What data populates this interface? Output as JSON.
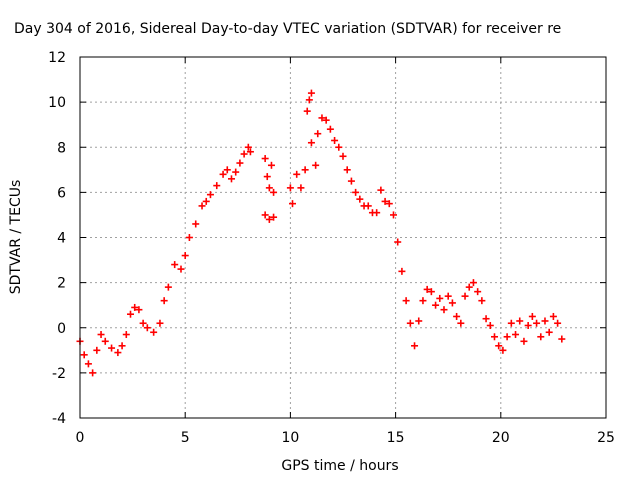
{
  "chart_data": {
    "type": "scatter",
    "title": "Day 304 of 2016, Sidereal Day-to-day VTEC variation (SDTVAR) for receiver re",
    "xlabel": "GPS time / hours",
    "ylabel": "SDTVAR / TECUs",
    "xlim": [
      0,
      25
    ],
    "ylim": [
      -4,
      12
    ],
    "xticks": [
      0,
      5,
      10,
      15,
      20,
      25
    ],
    "yticks": [
      -4,
      -2,
      0,
      2,
      4,
      6,
      8,
      10,
      12
    ],
    "grid": true,
    "marker": "+",
    "marker_color": "#ff0000",
    "series": [
      {
        "name": "SDTVAR",
        "points": [
          [
            0.0,
            -0.6
          ],
          [
            0.2,
            -1.2
          ],
          [
            0.4,
            -1.6
          ],
          [
            0.6,
            -2.0
          ],
          [
            0.8,
            -1.0
          ],
          [
            1.0,
            -0.3
          ],
          [
            1.2,
            -0.6
          ],
          [
            1.5,
            -0.9
          ],
          [
            1.8,
            -1.1
          ],
          [
            2.0,
            -0.8
          ],
          [
            2.2,
            -0.3
          ],
          [
            2.4,
            0.6
          ],
          [
            2.6,
            0.9
          ],
          [
            2.8,
            0.8
          ],
          [
            3.0,
            0.2
          ],
          [
            3.2,
            0.0
          ],
          [
            3.5,
            -0.2
          ],
          [
            3.8,
            0.2
          ],
          [
            4.0,
            1.2
          ],
          [
            4.2,
            1.8
          ],
          [
            4.5,
            2.8
          ],
          [
            4.8,
            2.6
          ],
          [
            5.0,
            3.2
          ],
          [
            5.2,
            4.0
          ],
          [
            5.5,
            4.6
          ],
          [
            5.8,
            5.4
          ],
          [
            6.0,
            5.6
          ],
          [
            6.2,
            5.9
          ],
          [
            6.5,
            6.3
          ],
          [
            6.8,
            6.8
          ],
          [
            7.0,
            7.0
          ],
          [
            7.2,
            6.6
          ],
          [
            7.4,
            6.9
          ],
          [
            7.6,
            7.3
          ],
          [
            7.8,
            7.7
          ],
          [
            8.0,
            8.0
          ],
          [
            8.1,
            7.8
          ],
          [
            8.8,
            7.5
          ],
          [
            8.9,
            6.7
          ],
          [
            9.0,
            6.2
          ],
          [
            9.1,
            7.2
          ],
          [
            9.2,
            6.0
          ],
          [
            8.8,
            5.0
          ],
          [
            9.0,
            4.8
          ],
          [
            9.2,
            4.9
          ],
          [
            10.0,
            6.2
          ],
          [
            10.1,
            5.5
          ],
          [
            10.3,
            6.8
          ],
          [
            10.5,
            6.2
          ],
          [
            10.7,
            7.0
          ],
          [
            10.8,
            9.6
          ],
          [
            10.9,
            10.1
          ],
          [
            11.0,
            10.4
          ],
          [
            11.0,
            8.2
          ],
          [
            11.2,
            7.2
          ],
          [
            11.3,
            8.6
          ],
          [
            11.5,
            9.3
          ],
          [
            11.7,
            9.2
          ],
          [
            11.9,
            8.8
          ],
          [
            12.1,
            8.3
          ],
          [
            12.3,
            8.0
          ],
          [
            12.5,
            7.6
          ],
          [
            12.7,
            7.0
          ],
          [
            12.9,
            6.5
          ],
          [
            13.1,
            6.0
          ],
          [
            13.3,
            5.7
          ],
          [
            13.5,
            5.4
          ],
          [
            13.7,
            5.4
          ],
          [
            13.9,
            5.1
          ],
          [
            14.1,
            5.1
          ],
          [
            14.3,
            6.1
          ],
          [
            14.5,
            5.6
          ],
          [
            14.7,
            5.5
          ],
          [
            14.9,
            5.0
          ],
          [
            15.1,
            3.8
          ],
          [
            15.3,
            2.5
          ],
          [
            15.5,
            1.2
          ],
          [
            15.7,
            0.2
          ],
          [
            15.9,
            -0.8
          ],
          [
            16.1,
            0.3
          ],
          [
            16.3,
            1.2
          ],
          [
            16.5,
            1.7
          ],
          [
            16.7,
            1.6
          ],
          [
            16.9,
            1.0
          ],
          [
            17.1,
            1.3
          ],
          [
            17.3,
            0.8
          ],
          [
            17.5,
            1.4
          ],
          [
            17.7,
            1.1
          ],
          [
            17.9,
            0.5
          ],
          [
            18.1,
            0.2
          ],
          [
            18.3,
            1.4
          ],
          [
            18.5,
            1.8
          ],
          [
            18.7,
            2.0
          ],
          [
            18.9,
            1.6
          ],
          [
            19.1,
            1.2
          ],
          [
            19.3,
            0.4
          ],
          [
            19.5,
            0.1
          ],
          [
            19.7,
            -0.4
          ],
          [
            19.9,
            -0.8
          ],
          [
            20.1,
            -1.0
          ],
          [
            20.3,
            -0.4
          ],
          [
            20.5,
            0.2
          ],
          [
            20.7,
            -0.3
          ],
          [
            20.9,
            0.3
          ],
          [
            21.1,
            -0.6
          ],
          [
            21.3,
            0.1
          ],
          [
            21.5,
            0.5
          ],
          [
            21.7,
            0.2
          ],
          [
            21.9,
            -0.4
          ],
          [
            22.1,
            0.3
          ],
          [
            22.3,
            -0.2
          ],
          [
            22.5,
            0.5
          ],
          [
            22.7,
            0.2
          ],
          [
            22.9,
            -0.5
          ]
        ]
      }
    ]
  }
}
